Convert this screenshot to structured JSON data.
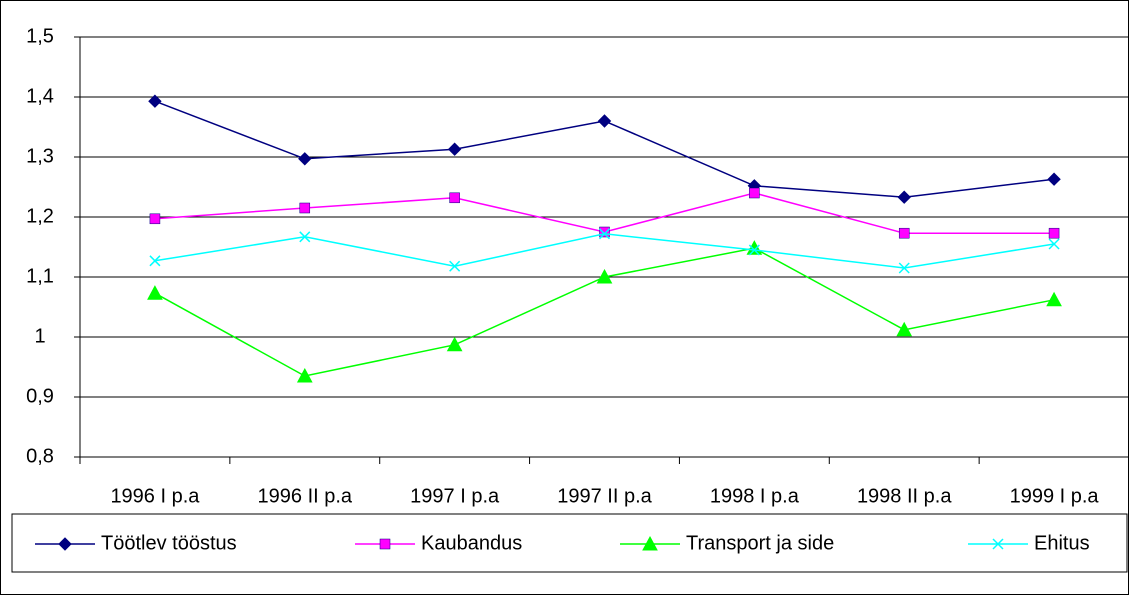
{
  "chart_data": {
    "type": "line",
    "categories": [
      "1996 I p.a",
      "1996 II p.a",
      "1997 I p.a",
      "1997 II p.a",
      "1998 I p.a",
      "1998 II p.a",
      "1999 I p.a"
    ],
    "series": [
      {
        "name": "Töötlev tööstus",
        "color": "#000080",
        "marker": "diamond",
        "values": [
          1.393,
          1.297,
          1.313,
          1.36,
          1.252,
          1.233,
          1.263
        ]
      },
      {
        "name": "Kaubandus",
        "color": "#ff00ff",
        "marker": "square",
        "values": [
          1.197,
          1.215,
          1.232,
          1.175,
          1.24,
          1.173,
          1.173
        ]
      },
      {
        "name": "Transport ja side",
        "color": "#00ff00",
        "marker": "triangle",
        "values": [
          1.073,
          0.935,
          0.987,
          1.1,
          1.148,
          1.012,
          1.062
        ]
      },
      {
        "name": "Ehitus",
        "color": "#00ffff",
        "marker": "x",
        "values": [
          1.127,
          1.167,
          1.118,
          1.172,
          1.145,
          1.115,
          1.155
        ]
      }
    ],
    "ylim": [
      0.8,
      1.5
    ],
    "yticks": [
      {
        "value": 0.8,
        "label": "0,8"
      },
      {
        "value": 0.9,
        "label": "0,9"
      },
      1,
      {
        "value": 1.1,
        "label": "1,1"
      },
      {
        "value": 1.2,
        "label": "1,2"
      },
      {
        "value": 1.3,
        "label": "1,3"
      },
      {
        "value": 1.4,
        "label": "1,4"
      },
      {
        "value": 1.5,
        "label": "1,5"
      }
    ],
    "grid": true,
    "legend": "bottom"
  }
}
